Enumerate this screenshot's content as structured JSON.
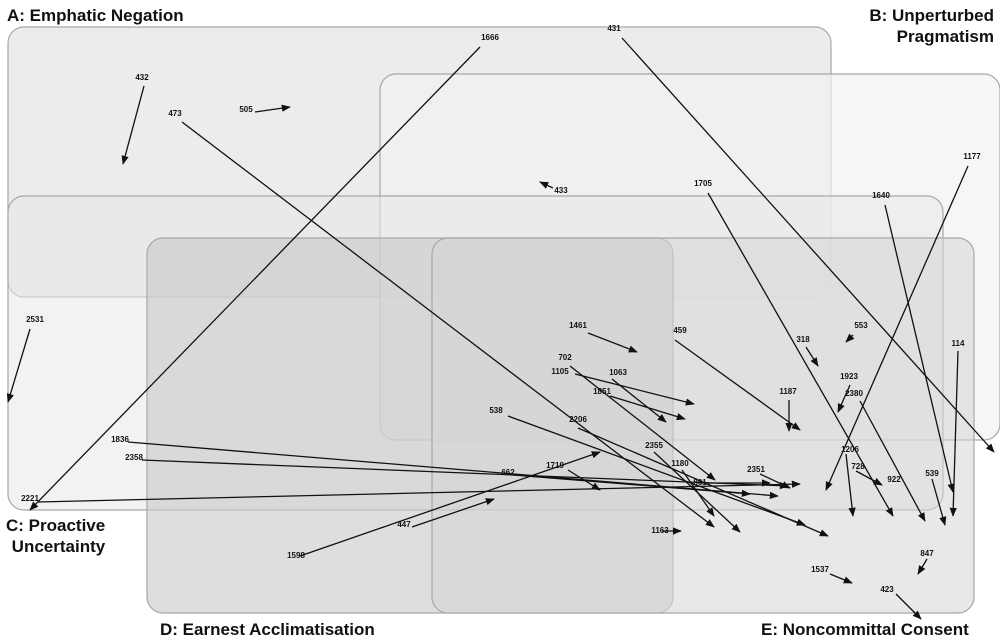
{
  "regions": [
    {
      "id": "A",
      "title": "A: Emphatic Negation"
    },
    {
      "id": "B",
      "title_line1": "B: Unperturbed",
      "title_line2": "Pragmatism"
    },
    {
      "id": "C",
      "title_line1": "C: Proactive",
      "title_line2": "Uncertainty"
    },
    {
      "id": "D",
      "title": "D: Earnest Acclimatisation"
    },
    {
      "id": "E",
      "title": "E: Noncommittal Consent"
    }
  ],
  "arrows": [
    {
      "label": "1666"
    },
    {
      "label": "431"
    },
    {
      "label": "432"
    },
    {
      "label": "505"
    },
    {
      "label": "473"
    },
    {
      "label": "433"
    },
    {
      "label": "1705"
    },
    {
      "label": "1640"
    },
    {
      "label": "1177"
    },
    {
      "label": "2531"
    },
    {
      "label": "553"
    },
    {
      "label": "318"
    },
    {
      "label": "114"
    },
    {
      "label": "1461"
    },
    {
      "label": "459"
    },
    {
      "label": "702"
    },
    {
      "label": "1063"
    },
    {
      "label": "1105"
    },
    {
      "label": "1851"
    },
    {
      "label": "1187"
    },
    {
      "label": "1923"
    },
    {
      "label": "2380"
    },
    {
      "label": "538"
    },
    {
      "label": "2206"
    },
    {
      "label": "1836"
    },
    {
      "label": "1206"
    },
    {
      "label": "728"
    },
    {
      "label": "922"
    },
    {
      "label": "539"
    },
    {
      "label": "2358"
    },
    {
      "label": "2355"
    },
    {
      "label": "1180"
    },
    {
      "label": "1719"
    },
    {
      "label": "662"
    },
    {
      "label": "861"
    },
    {
      "label": "2351"
    },
    {
      "label": "2221"
    },
    {
      "label": "447"
    },
    {
      "label": "1163"
    },
    {
      "label": "1598"
    },
    {
      "label": "847"
    },
    {
      "label": "1537"
    },
    {
      "label": "423"
    }
  ]
}
